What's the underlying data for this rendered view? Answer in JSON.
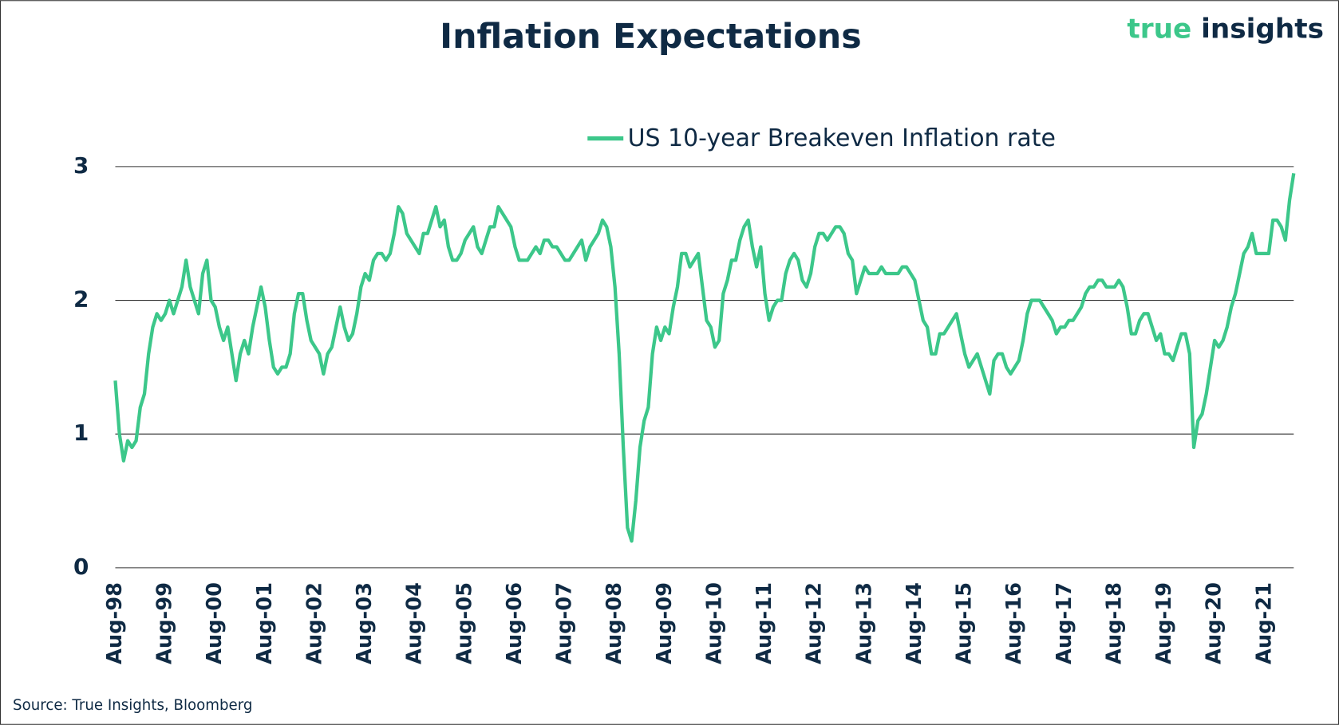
{
  "logo": [
    "true",
    "insights"
  ],
  "chart_data": {
    "type": "line",
    "title": "Inflation Expectations",
    "source": "Source: True Insights, Bloomberg",
    "categories": [
      "Aug-98",
      null,
      null,
      null,
      null,
      null,
      null,
      null,
      null,
      null,
      null,
      null,
      "Aug-99",
      null,
      null,
      null,
      null,
      null,
      null,
      null,
      null,
      null,
      null,
      null,
      "Aug-00",
      null,
      null,
      null,
      null,
      null,
      null,
      null,
      null,
      null,
      null,
      null,
      "Aug-01",
      null,
      null,
      null,
      null,
      null,
      null,
      null,
      null,
      null,
      null,
      null,
      "Aug-02",
      null,
      null,
      null,
      null,
      null,
      null,
      null,
      null,
      null,
      null,
      null,
      "Aug-03",
      null,
      null,
      null,
      null,
      null,
      null,
      null,
      null,
      null,
      null,
      null,
      "Aug-04",
      null,
      null,
      null,
      null,
      null,
      null,
      null,
      null,
      null,
      null,
      null,
      "Aug-05",
      null,
      null,
      null,
      null,
      null,
      null,
      null,
      null,
      null,
      null,
      null,
      "Aug-06",
      null,
      null,
      null,
      null,
      null,
      null,
      null,
      null,
      null,
      null,
      null,
      "Aug-07",
      null,
      null,
      null,
      null,
      null,
      null,
      null,
      null,
      null,
      null,
      null,
      "Aug-08",
      null,
      null,
      null,
      null,
      null,
      null,
      null,
      null,
      null,
      null,
      null,
      "Aug-09",
      null,
      null,
      null,
      null,
      null,
      null,
      null,
      null,
      null,
      null,
      null,
      "Aug-10",
      null,
      null,
      null,
      null,
      null,
      null,
      null,
      null,
      null,
      null,
      null,
      "Aug-11",
      null,
      null,
      null,
      null,
      null,
      null,
      null,
      null,
      null,
      null,
      null,
      "Aug-12",
      null,
      null,
      null,
      null,
      null,
      null,
      null,
      null,
      null,
      null,
      null,
      "Aug-13",
      null,
      null,
      null,
      null,
      null,
      null,
      null,
      null,
      null,
      null,
      null,
      "Aug-14",
      null,
      null,
      null,
      null,
      null,
      null,
      null,
      null,
      null,
      null,
      null,
      "Aug-15",
      null,
      null,
      null,
      null,
      null,
      null,
      null,
      null,
      null,
      null,
      null,
      "Aug-16",
      null,
      null,
      null,
      null,
      null,
      null,
      null,
      null,
      null,
      null,
      null,
      "Aug-17",
      null,
      null,
      null,
      null,
      null,
      null,
      null,
      null,
      null,
      null,
      null,
      "Aug-18",
      null,
      null,
      null,
      null,
      null,
      null,
      null,
      null,
      null,
      null,
      null,
      "Aug-19",
      null,
      null,
      null,
      null,
      null,
      null,
      null,
      null,
      null,
      null,
      null,
      "Aug-20",
      null,
      null,
      null,
      null,
      null,
      null,
      null,
      null,
      null,
      null,
      null,
      "Aug-21",
      null,
      null,
      null,
      null,
      null,
      null,
      null
    ],
    "series": [
      {
        "name": "US 10-year Breakeven Inflation rate",
        "color": "#3cc78a",
        "values": [
          1.4,
          1.0,
          0.8,
          0.95,
          0.9,
          0.95,
          1.2,
          1.3,
          1.6,
          1.8,
          1.9,
          1.85,
          1.9,
          2.0,
          1.9,
          2.0,
          2.1,
          2.3,
          2.1,
          2.0,
          1.9,
          2.2,
          2.3,
          2.0,
          1.95,
          1.8,
          1.7,
          1.8,
          1.6,
          1.4,
          1.6,
          1.7,
          1.6,
          1.8,
          1.95,
          2.1,
          1.95,
          1.7,
          1.5,
          1.45,
          1.5,
          1.5,
          1.6,
          1.9,
          2.05,
          2.05,
          1.85,
          1.7,
          1.65,
          1.6,
          1.45,
          1.6,
          1.65,
          1.8,
          1.95,
          1.8,
          1.7,
          1.75,
          1.9,
          2.1,
          2.2,
          2.15,
          2.3,
          2.35,
          2.35,
          2.3,
          2.35,
          2.5,
          2.7,
          2.65,
          2.5,
          2.45,
          2.4,
          2.35,
          2.5,
          2.5,
          2.6,
          2.7,
          2.55,
          2.6,
          2.4,
          2.3,
          2.3,
          2.35,
          2.45,
          2.5,
          2.55,
          2.4,
          2.35,
          2.45,
          2.55,
          2.55,
          2.7,
          2.65,
          2.6,
          2.55,
          2.4,
          2.3,
          2.3,
          2.3,
          2.35,
          2.4,
          2.35,
          2.45,
          2.45,
          2.4,
          2.4,
          2.35,
          2.3,
          2.3,
          2.35,
          2.4,
          2.45,
          2.3,
          2.4,
          2.45,
          2.5,
          2.6,
          2.55,
          2.4,
          2.1,
          1.6,
          0.9,
          0.3,
          0.2,
          0.5,
          0.9,
          1.1,
          1.2,
          1.6,
          1.8,
          1.7,
          1.8,
          1.75,
          1.95,
          2.1,
          2.35,
          2.35,
          2.25,
          2.3,
          2.35,
          2.1,
          1.85,
          1.8,
          1.65,
          1.7,
          2.05,
          2.15,
          2.3,
          2.3,
          2.45,
          2.55,
          2.6,
          2.4,
          2.25,
          2.4,
          2.05,
          1.85,
          1.95,
          2.0,
          2.0,
          2.2,
          2.3,
          2.35,
          2.3,
          2.15,
          2.1,
          2.2,
          2.4,
          2.5,
          2.5,
          2.45,
          2.5,
          2.55,
          2.55,
          2.5,
          2.35,
          2.3,
          2.05,
          2.15,
          2.25,
          2.2,
          2.2,
          2.2,
          2.25,
          2.2,
          2.2,
          2.2,
          2.2,
          2.25,
          2.25,
          2.2,
          2.15,
          2.0,
          1.85,
          1.8,
          1.6,
          1.6,
          1.75,
          1.75,
          1.8,
          1.85,
          1.9,
          1.75,
          1.6,
          1.5,
          1.55,
          1.6,
          1.5,
          1.4,
          1.3,
          1.55,
          1.6,
          1.6,
          1.5,
          1.45,
          1.5,
          1.55,
          1.7,
          1.9,
          2.0,
          2.0,
          2.0,
          1.95,
          1.9,
          1.85,
          1.75,
          1.8,
          1.8,
          1.85,
          1.85,
          1.9,
          1.95,
          2.05,
          2.1,
          2.1,
          2.15,
          2.15,
          2.1,
          2.1,
          2.1,
          2.15,
          2.1,
          1.95,
          1.75,
          1.75,
          1.85,
          1.9,
          1.9,
          1.8,
          1.7,
          1.75,
          1.6,
          1.6,
          1.55,
          1.65,
          1.75,
          1.75,
          1.6,
          0.9,
          1.1,
          1.15,
          1.3,
          1.5,
          1.7,
          1.65,
          1.7,
          1.8,
          1.95,
          2.05,
          2.2,
          2.35,
          2.4,
          2.5,
          2.35,
          2.35,
          2.35,
          2.35,
          2.6,
          2.6,
          2.55,
          2.45,
          2.75,
          2.95
        ]
      }
    ],
    "ylim": [
      0,
      3
    ],
    "yticks": [
      0,
      1,
      2,
      3
    ],
    "grid": true,
    "legend": "top"
  }
}
